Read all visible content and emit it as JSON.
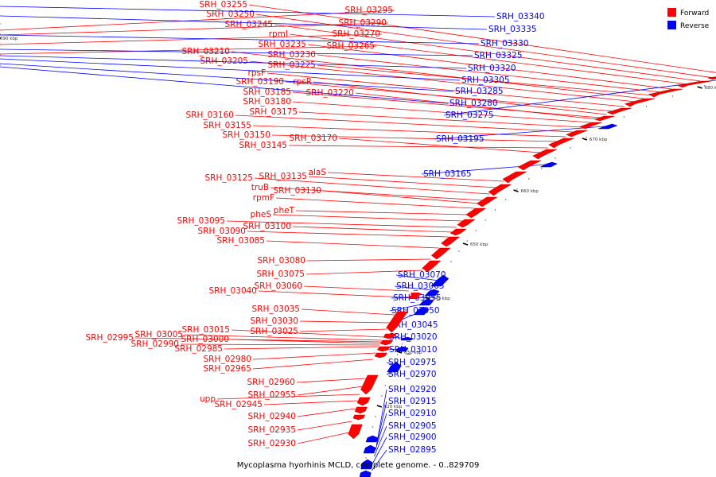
{
  "caption": "Mycoplasma hyorhinis MCLD, complete genome. - 0..829709",
  "colors": {
    "forward": "#ff0000",
    "reverse": "#0000ff",
    "backbone": "#808080",
    "tick": "#000000"
  },
  "legend": [
    {
      "label": "Forward",
      "color": "#ff0000"
    },
    {
      "label": "Reverse",
      "color": "#0000ff"
    }
  ],
  "ticks": [
    {
      "label": "690 kbp",
      "pos": 690
    },
    {
      "label": "680 kbp",
      "pos": 680
    },
    {
      "label": "670 kbp",
      "pos": 670
    },
    {
      "label": "660 kbp",
      "pos": 660
    },
    {
      "label": "650 kbp",
      "pos": 650
    },
    {
      "label": "640 kbp",
      "pos": 640
    },
    {
      "label": "630 kbp",
      "pos": 630
    },
    {
      "label": "620 kbp",
      "pos": 620
    }
  ],
  "forward_labels": [
    "SRH_03255",
    "SRH_03250",
    "SRH_03245",
    "rpmI",
    "SRH_03235",
    "SRH_03230",
    "SRH_03225",
    "SRH_03210",
    "SRH_03205",
    "rpsF",
    "SRH_03190",
    "rpsR",
    "SRH_03185",
    "SRH_03180",
    "SRH_03175",
    "SRH_03160",
    "SRH_03155",
    "SRH_03150",
    "SRH_03145",
    "SRH_03170",
    "SRH_03295",
    "SRH_03290",
    "SRH_03270",
    "SRH_03265",
    "SRH_03220",
    "SRH_03135",
    "alaS",
    "SRH_03125",
    "truB",
    "SRH_03130",
    "rpmF",
    "pheT",
    "pheS",
    "SRH_03095",
    "SRH_03100",
    "SRH_03090",
    "SRH_03085",
    "SRH_03080",
    "SRH_03075",
    "SRH_03060",
    "SRH_03040",
    "SRH_03035",
    "SRH_03030",
    "SRH_03025",
    "SRH_03015",
    "SRH_03005",
    "SRH_02995",
    "SRH_03000",
    "SRH_02990",
    "SRH_02985",
    "SRH_02980",
    "SRH_02965",
    "SRH_02960",
    "SRH_02955",
    "upp",
    "SRH_02945",
    "SRH_02940",
    "SRH_02935",
    "SRH_02930"
  ],
  "reverse_labels": [
    "SRH_03340",
    "SRH_03335",
    "SRH_03330",
    "SRH_03325",
    "SRH_03320",
    "SRH_03305",
    "SRH_03285",
    "SRH_03280",
    "SRH_03275",
    "SRH_03195",
    "SRH_03165",
    "SRH_03070",
    "SRH_03065",
    "SRH_03055",
    "SRH_03050",
    "SRH_03045",
    "SRH_03020",
    "SRH_03010",
    "SRH_02975",
    "SRH_02970",
    "SRH_02920",
    "SRH_02915",
    "SRH_02910",
    "SRH_02905",
    "SRH_02900",
    "SRH_02895"
  ]
}
